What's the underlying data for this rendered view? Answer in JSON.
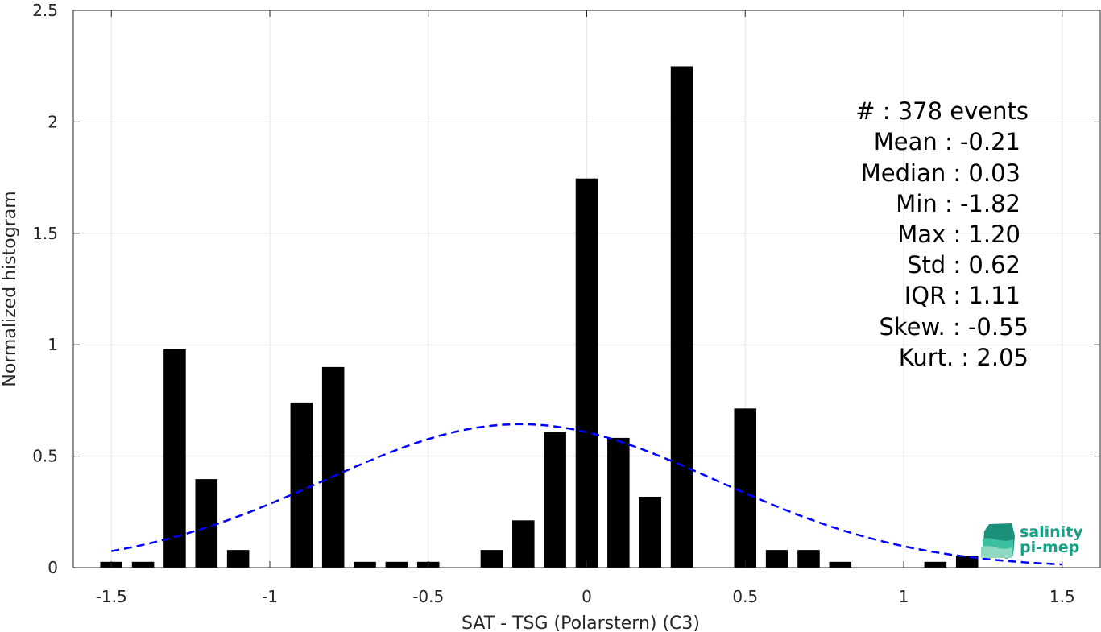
{
  "chart_data": {
    "type": "bar",
    "xlabel": "SAT - TSG (Polarstern) (C3)",
    "ylabel": "Normalized histogram",
    "xlim": [
      -1.62,
      1.62
    ],
    "ylim": [
      0,
      2.5
    ],
    "xticks": [
      -1.5,
      -1,
      -0.5,
      0,
      0.5,
      1,
      1.5
    ],
    "xtick_labels": [
      "-1.5",
      "-1",
      "-0.5",
      "0",
      "0.5",
      "1",
      "1.5"
    ],
    "yticks": [
      0,
      0.5,
      1,
      1.5,
      2,
      2.5
    ],
    "ytick_labels": [
      "0",
      "0.5",
      "1",
      "1.5",
      "2",
      "2.5"
    ],
    "grid": true,
    "bar_color": "#000000",
    "x": [
      -1.5,
      -1.4,
      -1.3,
      -1.2,
      -1.1,
      -1.0,
      -0.9,
      -0.8,
      -0.7,
      -0.6,
      -0.5,
      -0.4,
      -0.3,
      -0.2,
      -0.1,
      0.0,
      0.1,
      0.2,
      0.3,
      0.4,
      0.5,
      0.6,
      0.7,
      0.8,
      0.9,
      1.0,
      1.1,
      1.2
    ],
    "values": [
      0.026,
      0.026,
      0.98,
      0.397,
      0.079,
      0,
      0.741,
      0.9,
      0.026,
      0.026,
      0.026,
      0,
      0.079,
      0.212,
      0.609,
      1.746,
      0.582,
      0.318,
      2.249,
      0,
      0.714,
      0.079,
      0.079,
      0.026,
      0,
      0,
      0.026,
      0.053
    ],
    "fit_curve": {
      "type": "normal",
      "mean": -0.21,
      "std": 0.62,
      "x_range": [
        -1.5,
        1.5
      ],
      "color": "#0000ff",
      "style": "dashed"
    }
  },
  "stats": {
    "lines": [
      "#  : 378 events",
      "Mean : -0.21",
      "Median : 0.03",
      "Min : -1.82",
      "Max : 1.20",
      "Std : 0.62",
      "IQR : 1.11",
      "Skew. : -0.55",
      "Kurt. : 2.05"
    ]
  },
  "logo": {
    "line1": "salinity",
    "line2": "pi-mep",
    "color": "#16a085"
  }
}
